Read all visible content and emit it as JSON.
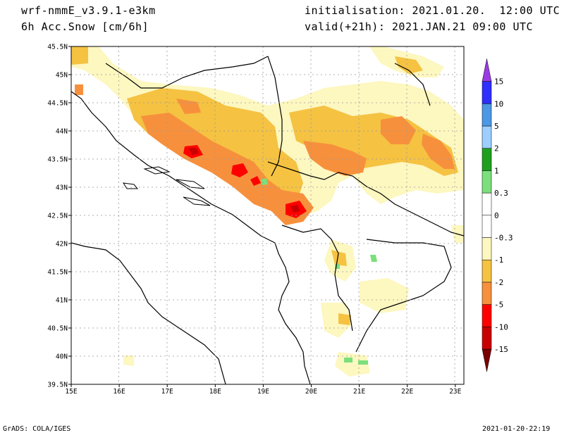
{
  "header": {
    "model": "wrf-nmmE_v3.9.1-e3km",
    "field": "6h Acc.Snow [cm/6h]",
    "init": "initialisation: 2021.01.20.  12:00 UTC",
    "valid": "valid(+21h): 2021.JAN.21 09:00 UTC"
  },
  "footer": {
    "credit": "GrADS: COLA/IGES",
    "timestamp": "2021-01-20-22:19"
  },
  "axes": {
    "lon_labels": [
      "15E",
      "16E",
      "17E",
      "18E",
      "19E",
      "20E",
      "21E",
      "22E",
      "23E"
    ],
    "lat_labels": [
      "45.5N",
      "45N",
      "44.5N",
      "44N",
      "43.5N",
      "43N",
      "42.5N",
      "42N",
      "41.5N",
      "41N",
      "40.5N",
      "40N",
      "39.5N"
    ]
  },
  "colorbar": {
    "levels": [
      {
        "color": "#7a0000",
        "label": "-15"
      },
      {
        "color": "#c80000",
        "label": "-10"
      },
      {
        "color": "#ff0000",
        "label": "-5"
      },
      {
        "color": "#f7903c",
        "label": "-2"
      },
      {
        "color": "#f5c242",
        "label": "-1"
      },
      {
        "color": "#fdf7c0",
        "label": "-0.3"
      },
      {
        "color": "#ffffff",
        "label": "0"
      },
      {
        "color": "#ffffff",
        "label": "0.3"
      },
      {
        "color": "#7be07b",
        "label": "1"
      },
      {
        "color": "#1ea01e",
        "label": "2"
      },
      {
        "color": "#9ccfff",
        "label": "5"
      },
      {
        "color": "#4a98e6",
        "label": "10"
      },
      {
        "color": "#2f2fff",
        "label": "15"
      },
      {
        "color": "#9a3ce6",
        "label": ""
      }
    ]
  }
}
